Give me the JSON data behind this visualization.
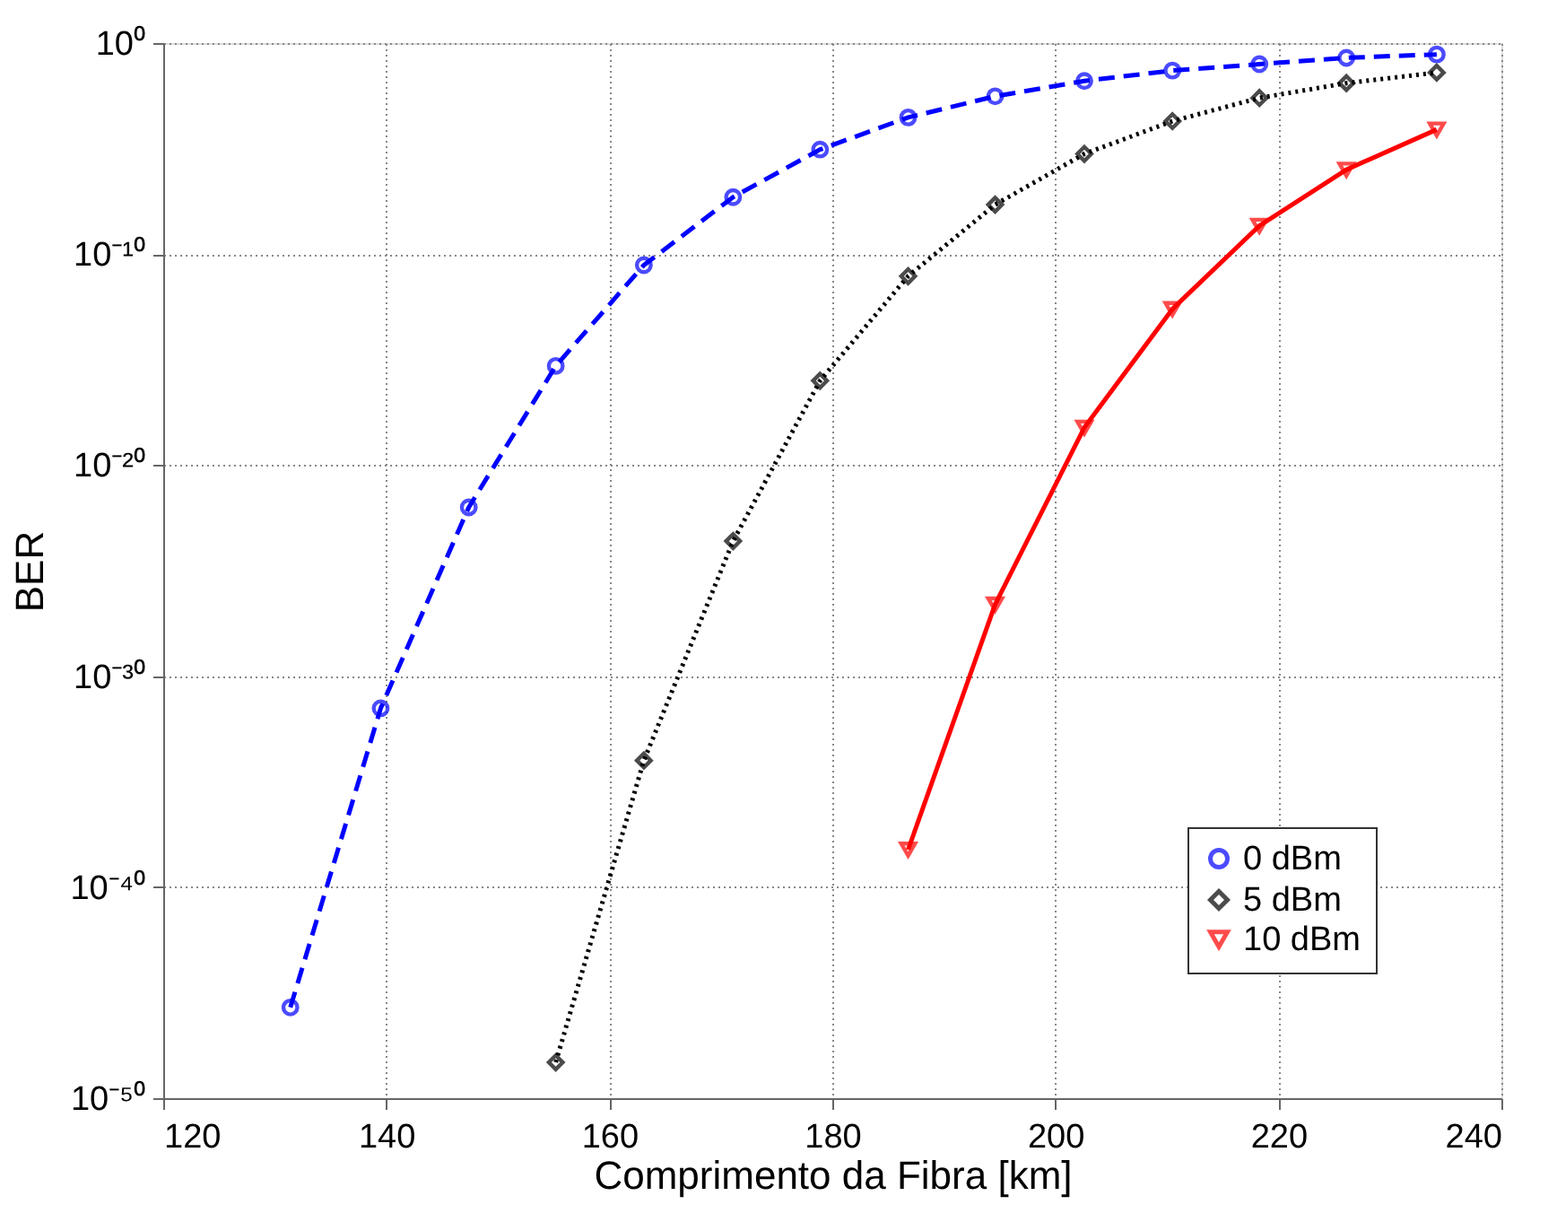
{
  "chart_data": {
    "type": "line",
    "xlabel": "Comprimento da Fibra [km]",
    "ylabel": "BER",
    "log": "y",
    "grid": true,
    "legend": "bottom right",
    "xlim": [
      120,
      240
    ],
    "xticks": [
      120,
      140,
      160,
      180,
      200,
      220,
      240
    ],
    "ylim": [
      1e-50,
      1
    ],
    "yticks": [
      {
        "value": 1,
        "label": "10⁰"
      },
      {
        "value": 1e-10,
        "label": "10⁻¹⁰"
      },
      {
        "value": 1e-20,
        "label": "10⁻²⁰"
      },
      {
        "value": 1e-30,
        "label": "10⁻³⁰"
      },
      {
        "value": 1e-40,
        "label": "10⁻⁴⁰"
      },
      {
        "value": 1e-50,
        "label": "10⁻⁵⁰"
      }
    ],
    "series": [
      {
        "name": "0 dBm",
        "color": "#0000ff",
        "line_style": "dashed",
        "marker": "circle",
        "x": [
          131.4,
          139.5,
          147.4,
          155.2,
          163.1,
          171.1,
          178.9,
          186.8,
          194.6,
          202.6,
          210.5,
          218.3,
          226.1,
          234.2
        ],
        "values": [
          2e-46,
          3e-32,
          1e-22,
          5e-16,
          3e-11,
          5e-08,
          9e-06,
          0.0003,
          0.003,
          0.016,
          0.05,
          0.1,
          0.2,
          0.29
        ]
      },
      {
        "name": "5 dBm",
        "color": "#000000",
        "line_style": "dotted",
        "marker": "diamond",
        "x": [
          155.2,
          163.1,
          171.1,
          178.9,
          186.8,
          194.6,
          202.6,
          210.5,
          218.3,
          226.1,
          234.2
        ],
        "values": [
          5e-49,
          1e-34,
          2.5e-24,
          1e-16,
          9e-12,
          2.2e-08,
          5.6e-06,
          0.0002,
          0.0025,
          0.0126,
          0.04
        ]
      },
      {
        "name": "10 dBm",
        "color": "#ff0000",
        "line_style": "solid",
        "marker": "triangle",
        "x": [
          186.8,
          194.6,
          202.6,
          210.5,
          218.3,
          226.1,
          234.2
        ],
        "values": [
          6e-39,
          2.5e-27,
          6e-19,
          2.5e-13,
          2.2e-09,
          1e-06,
          8e-05
        ]
      }
    ]
  }
}
